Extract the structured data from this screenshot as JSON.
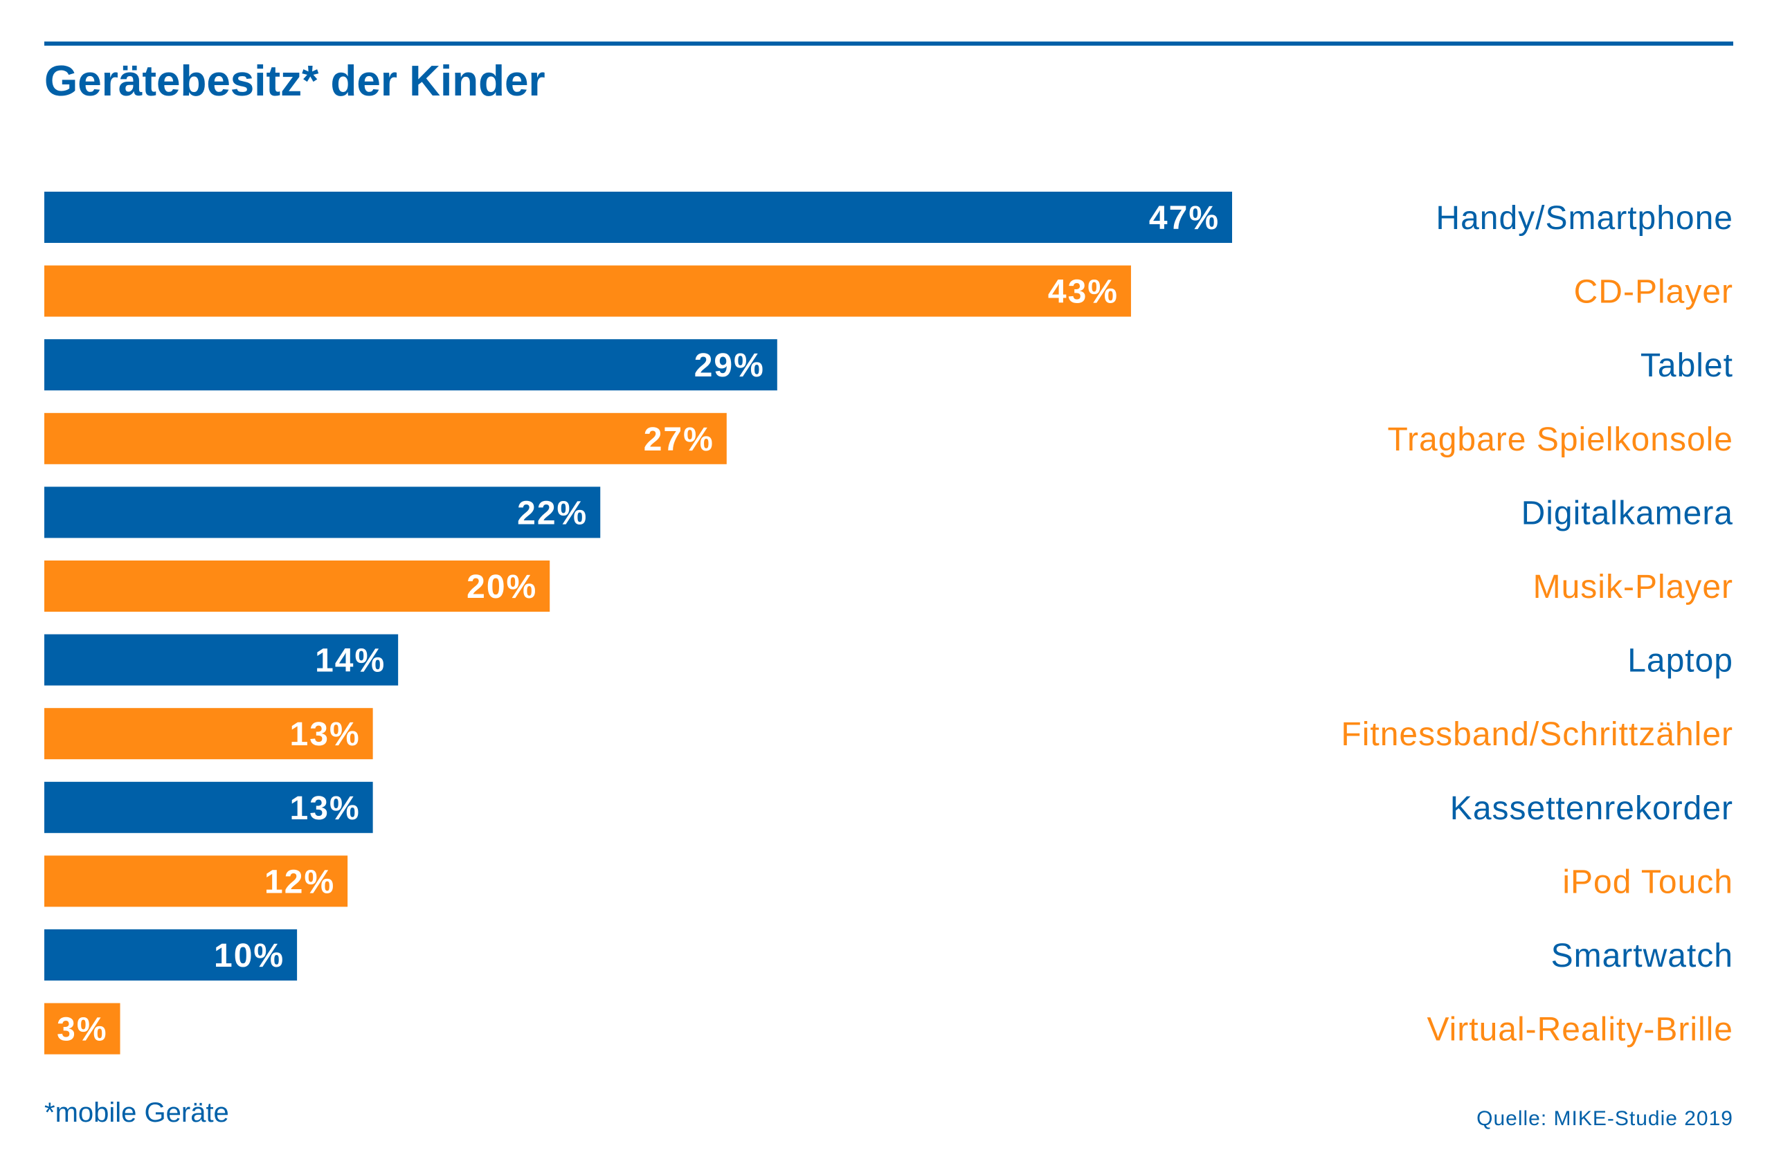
{
  "title": "Gerätebesitz* der Kinder",
  "footnote": "*mobile Geräte",
  "source": "Quelle: MIKE-Studie 2019",
  "colors": {
    "blue": "#0060a8",
    "orange": "#ff8a14"
  },
  "chart_data": {
    "type": "bar",
    "orientation": "horizontal",
    "title": "Gerätebesitz* der Kinder",
    "unit": "%",
    "categories": [
      "Handy/Smartphone",
      "CD-Player",
      "Tablet",
      "Tragbare Spielkonsole",
      "Digitalkamera",
      "Musik-Player",
      "Laptop",
      "Fitnessband/Schrittzähler",
      "Kassettenrekorder",
      "iPod Touch",
      "Smartwatch",
      "Virtual-Reality-Brille"
    ],
    "values": [
      47,
      43,
      29,
      27,
      22,
      20,
      14,
      13,
      13,
      12,
      10,
      3
    ],
    "labels": [
      "47%",
      "43%",
      "29%",
      "27%",
      "22%",
      "20%",
      "14%",
      "13%",
      "13%",
      "12%",
      "10%",
      "3%"
    ],
    "bar_colors": [
      "blue",
      "orange",
      "blue",
      "orange",
      "blue",
      "orange",
      "blue",
      "orange",
      "blue",
      "orange",
      "blue",
      "orange"
    ],
    "xlim": [
      0,
      47
    ],
    "grid": false,
    "legend": "none"
  }
}
